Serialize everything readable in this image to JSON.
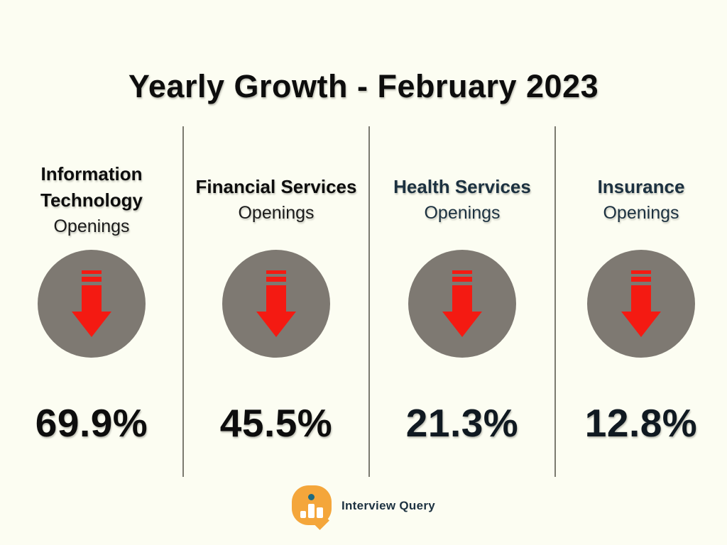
{
  "page": {
    "title": "Yearly Growth - February 2023",
    "background_color": "#FCFDF2"
  },
  "columns": [
    {
      "name": "Information Technology",
      "subtitle": "Openings",
      "value": "69.9%",
      "trend": "down",
      "text_color": "#0D0D0D"
    },
    {
      "name": "Financial Services",
      "subtitle": "Openings",
      "value": "45.5%",
      "trend": "down",
      "text_color": "#0D0D0D"
    },
    {
      "name": "Health Services",
      "subtitle": "Openings",
      "value": "21.3%",
      "trend": "down",
      "text_color": "#1C3140"
    },
    {
      "name": "Insurance",
      "subtitle": "Openings",
      "value": "12.8%",
      "trend": "down",
      "text_color": "#1C3140"
    }
  ],
  "icons": {
    "trend_icon": "red-down-arrow-in-gray-circle",
    "brand_icon": "magnifier-with-bar-chart"
  },
  "colors": {
    "arrow_red": "#F41A12",
    "circle_gray": "#7E7972",
    "divider_gray": "#7B7A70",
    "logo_orange": "#F4A63B",
    "logo_teal": "#1E6A80",
    "navy_text": "#1C3140"
  },
  "footer": {
    "brand": "Interview Query"
  },
  "chart_data": {
    "type": "table",
    "title": "Yearly Growth - February 2023",
    "categories": [
      "Information Technology Openings",
      "Financial Services Openings",
      "Health Services Openings",
      "Insurance Openings"
    ],
    "values": [
      69.9,
      45.5,
      21.3,
      12.8
    ],
    "unit": "%",
    "trend_indicator": "down-arrow",
    "legend_position": "none",
    "grid": false
  }
}
